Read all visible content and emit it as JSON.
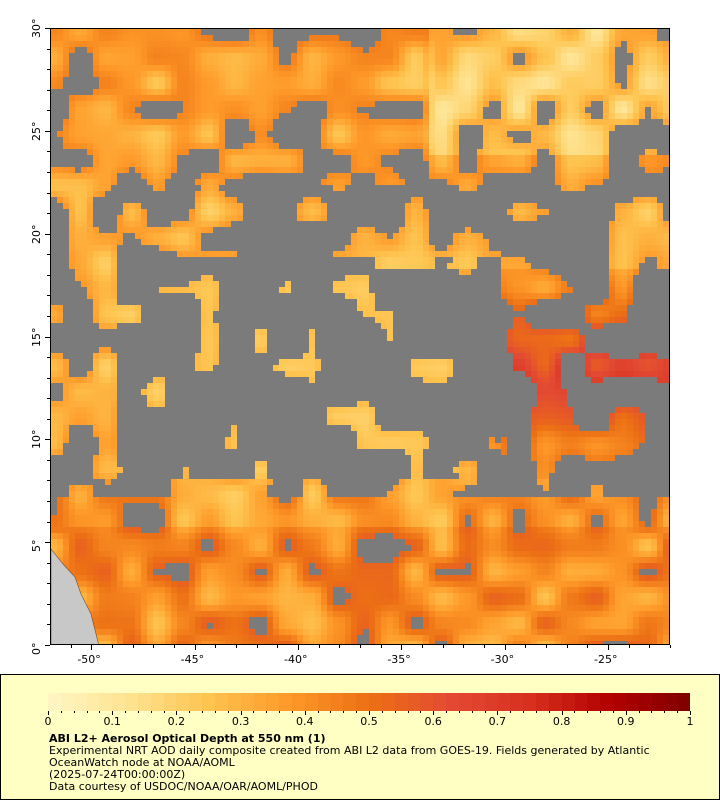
{
  "map": {
    "lon_labels": [
      "-50°",
      "-45°",
      "-40°",
      "-35°",
      "-30°",
      "-25°"
    ],
    "lat_labels": [
      "0°",
      "5°",
      "10°",
      "15°",
      "20°",
      "25°",
      "30°"
    ],
    "lon_range": [
      -52,
      -22
    ],
    "lat_range": [
      0,
      30
    ],
    "cloud_color": "#7b7b7b",
    "land_color": "#c8c8c8"
  },
  "legend": {
    "tick_labels": [
      "0",
      "0.1",
      "0.2",
      "0.3",
      "0.4",
      "0.5",
      "0.6",
      "0.7",
      "0.8",
      "0.9",
      "1"
    ],
    "range": [
      0,
      1
    ],
    "colors": [
      "#fff7c4",
      "#fee391",
      "#fec44f",
      "#fe9929",
      "#ec7014",
      "#e34a33",
      "#d7301f",
      "#b30000",
      "#7f0000"
    ],
    "title": "ABI L2+ Aerosol Optical Depth at 550 nm (1)",
    "line1": "Experimental NRT AOD daily composite created from ABI L2 data from GOES-19. Fields generated by Atlantic OceanWatch node at NOAA/AOML",
    "line2": "(2025-07-24T00:00:00Z)",
    "line3": "Data courtesy of USDOC/NOAA/OAR/AOML/PHOD"
  }
}
